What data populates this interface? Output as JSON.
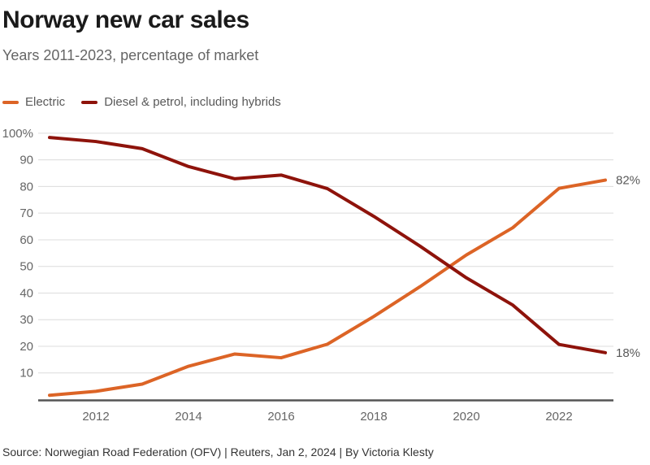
{
  "header": {
    "title": "Norway new car sales",
    "subtitle": "Years 2011-2023, percentage of market"
  },
  "legend": {
    "items": [
      {
        "label": "Electric",
        "color": "#DC6426"
      },
      {
        "label": "Diesel & petrol, including hybrids",
        "color": "#8E130B"
      }
    ]
  },
  "chart_data": {
    "type": "line",
    "title": "Norway new car sales",
    "subtitle": "Years 2011-2023, percentage of market",
    "x": [
      2011,
      2012,
      2013,
      2014,
      2015,
      2016,
      2017,
      2018,
      2019,
      2020,
      2021,
      2022,
      2023
    ],
    "x_ticks": [
      2012,
      2014,
      2016,
      2018,
      2020,
      2022
    ],
    "y_ticks": [
      {
        "value": 10,
        "label": "10"
      },
      {
        "value": 20,
        "label": "20"
      },
      {
        "value": 30,
        "label": "30"
      },
      {
        "value": 40,
        "label": "40"
      },
      {
        "value": 50,
        "label": "50"
      },
      {
        "value": 60,
        "label": "60"
      },
      {
        "value": 70,
        "label": "70"
      },
      {
        "value": 80,
        "label": "80"
      },
      {
        "value": 90,
        "label": "90"
      },
      {
        "value": 100,
        "label": "100%"
      }
    ],
    "ylim": [
      0,
      100
    ],
    "grid": "horizontal",
    "legend_position": "top-left",
    "series": [
      {
        "name": "Electric",
        "color": "#DC6426",
        "end_label": "82%",
        "values": [
          1.6,
          3.1,
          5.8,
          12.5,
          17.1,
          15.7,
          20.8,
          31.2,
          42.4,
          54.3,
          64.5,
          79.3,
          82.4
        ]
      },
      {
        "name": "Diesel & petrol, including hybrids",
        "color": "#8E130B",
        "end_label": "18%",
        "values": [
          98.4,
          96.9,
          94.2,
          87.5,
          82.9,
          84.3,
          79.2,
          68.8,
          57.6,
          45.7,
          35.5,
          20.7,
          17.6
        ]
      }
    ]
  },
  "footer": {
    "source": "Source: Norwegian Road Federation (OFV) | Reuters, Jan 2, 2024 | By Victoria Klesty"
  },
  "theme": {
    "title_color": "#1a1a1a",
    "subtitle_color": "#666666",
    "legend_text_color": "#595959",
    "grid_color": "#dcdcdc",
    "baseline_color": "#555555",
    "axis_text_color": "#666666",
    "end_label_color": "#595959",
    "source_color": "#333333"
  }
}
